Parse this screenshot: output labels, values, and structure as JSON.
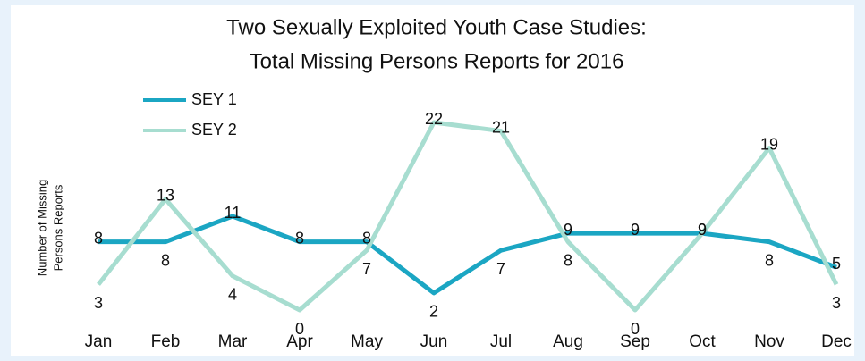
{
  "chart_data": {
    "type": "line",
    "title": "Two Sexually Exploited Youth Case Studies:",
    "subtitle": "Total Missing Persons Reports for 2016",
    "ylabel": [
      "Number of Missing",
      "Persons Reports"
    ],
    "categories": [
      "Jan",
      "Feb",
      "Mar",
      "Apr",
      "May",
      "Jun",
      "Jul",
      "Aug",
      "Sep",
      "Oct",
      "Nov",
      "Dec"
    ],
    "series": [
      {
        "name": "SEY 1",
        "color": "#1ba6c3",
        "values": [
          8,
          8,
          11,
          8,
          8,
          2,
          7,
          9,
          9,
          9,
          8,
          5
        ]
      },
      {
        "name": "SEY 2",
        "color": "#a7ddd0",
        "values": [
          3,
          13,
          4,
          0,
          7,
          22,
          21,
          8,
          0,
          9,
          19,
          3
        ]
      }
    ],
    "ylim": [
      0,
      22
    ],
    "legend": "top-left"
  }
}
